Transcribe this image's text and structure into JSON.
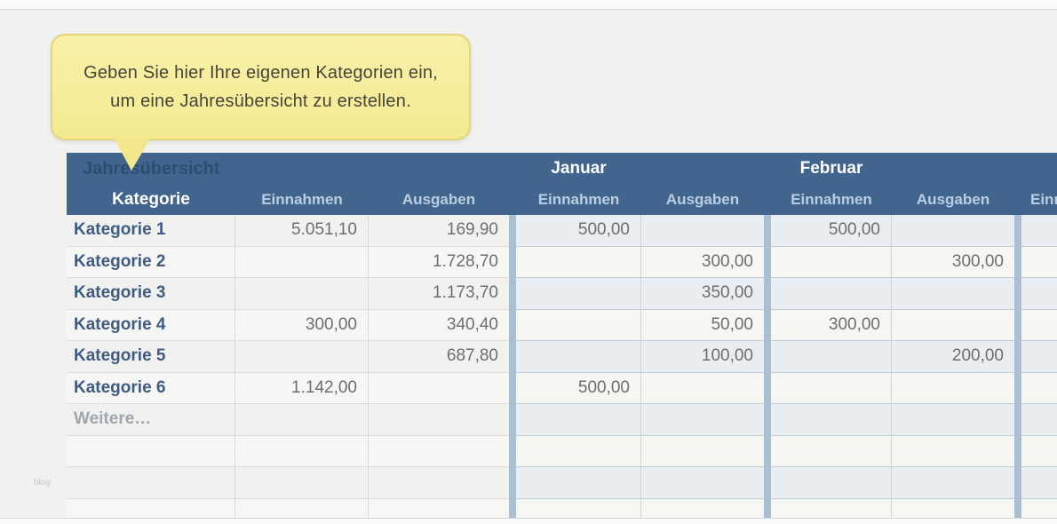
{
  "callout": {
    "line1": "Geben Sie hier Ihre eigenen Kategorien ein,",
    "line2": "um eine Jahresübersicht zu erstellen."
  },
  "watermark": "blog",
  "table": {
    "title": "Jahresübersicht",
    "months": {
      "january": "Januar",
      "february": "Februar"
    },
    "headers": {
      "kategorie": "Kategorie",
      "einnahmen": "Einnahmen",
      "ausgaben": "Ausgaben",
      "partial_einnahmen": "Einnahmen"
    },
    "rows": [
      {
        "label": "Kategorie 1",
        "einnahmen": "5.051,10",
        "ausgaben": "169,90",
        "jan_einnahmen": "500,00",
        "jan_ausgaben": "",
        "feb_einnahmen": "500,00",
        "feb_ausgaben": ""
      },
      {
        "label": "Kategorie 2",
        "einnahmen": "",
        "ausgaben": "1.728,70",
        "jan_einnahmen": "",
        "jan_ausgaben": "300,00",
        "feb_einnahmen": "",
        "feb_ausgaben": "300,00"
      },
      {
        "label": "Kategorie 3",
        "einnahmen": "",
        "ausgaben": "1.173,70",
        "jan_einnahmen": "",
        "jan_ausgaben": "350,00",
        "feb_einnahmen": "",
        "feb_ausgaben": ""
      },
      {
        "label": "Kategorie 4",
        "einnahmen": "300,00",
        "ausgaben": "340,40",
        "jan_einnahmen": "",
        "jan_ausgaben": "50,00",
        "feb_einnahmen": "300,00",
        "feb_ausgaben": ""
      },
      {
        "label": "Kategorie 5",
        "einnahmen": "",
        "ausgaben": "687,80",
        "jan_einnahmen": "",
        "jan_ausgaben": "100,00",
        "feb_einnahmen": "",
        "feb_ausgaben": "200,00"
      },
      {
        "label": "Kategorie 6",
        "einnahmen": "1.142,00",
        "ausgaben": "",
        "jan_einnahmen": "500,00",
        "jan_ausgaben": "",
        "feb_einnahmen": "",
        "feb_ausgaben": ""
      },
      {
        "label": "Weitere…",
        "einnahmen": "",
        "ausgaben": "",
        "jan_einnahmen": "",
        "jan_ausgaben": "",
        "feb_einnahmen": "",
        "feb_ausgaben": ""
      },
      {
        "label": "",
        "einnahmen": "",
        "ausgaben": "",
        "jan_einnahmen": "",
        "jan_ausgaben": "",
        "feb_einnahmen": "",
        "feb_ausgaben": ""
      },
      {
        "label": "",
        "einnahmen": "",
        "ausgaben": "",
        "jan_einnahmen": "",
        "jan_ausgaben": "",
        "feb_einnahmen": "",
        "feb_ausgaben": ""
      },
      {
        "label": "",
        "einnahmen": "",
        "ausgaben": "",
        "jan_einnahmen": "",
        "jan_ausgaben": "",
        "feb_einnahmen": "",
        "feb_ausgaben": ""
      }
    ],
    "colors": {
      "header_bg": "#42658e",
      "header_title_text": "#2d4c73",
      "month_text": "#ffffff",
      "subheader_text": "#b9cee2",
      "section_divider": "#a9c0d2",
      "category_text": "#3f5c80",
      "number_text": "#6e6e6e",
      "callout_bg": "#f5eb99",
      "callout_border": "#e4d678"
    }
  }
}
